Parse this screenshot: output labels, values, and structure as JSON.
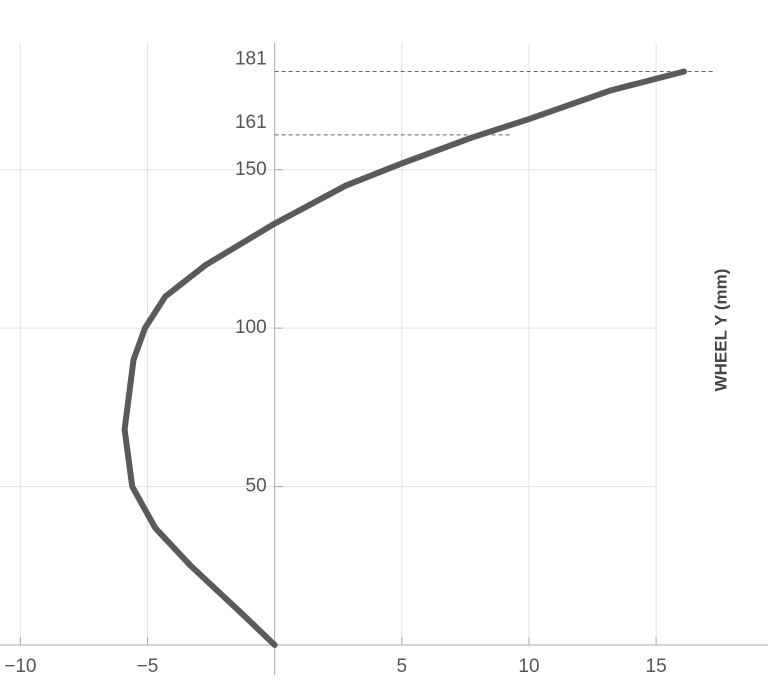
{
  "chart_data": {
    "type": "line",
    "y_axis_label": "WHEEL Y (mm)",
    "xlim": [
      -10.8,
      19.4
    ],
    "ylim": [
      0,
      190
    ],
    "xticks": [
      {
        "value": -10,
        "label": "−10"
      },
      {
        "value": -5,
        "label": "−5"
      },
      5,
      10,
      15
    ],
    "yticks": [
      50,
      100,
      150
    ],
    "reference_lines": [
      161,
      181
    ],
    "grid": true,
    "series": [
      {
        "color": "#5a5a5a",
        "x": [
          0,
          -1.3,
          -3.3,
          -4.7,
          -5.6,
          -5.9,
          -5.55,
          -5.1,
          -4.3,
          -2.7,
          0,
          2.8,
          5,
          7.7,
          10,
          13.2,
          16.1
        ],
        "values": [
          0,
          10,
          25,
          37,
          50,
          68,
          90,
          100,
          110,
          120,
          133,
          145,
          152,
          160,
          166,
          175,
          181
        ]
      }
    ]
  }
}
